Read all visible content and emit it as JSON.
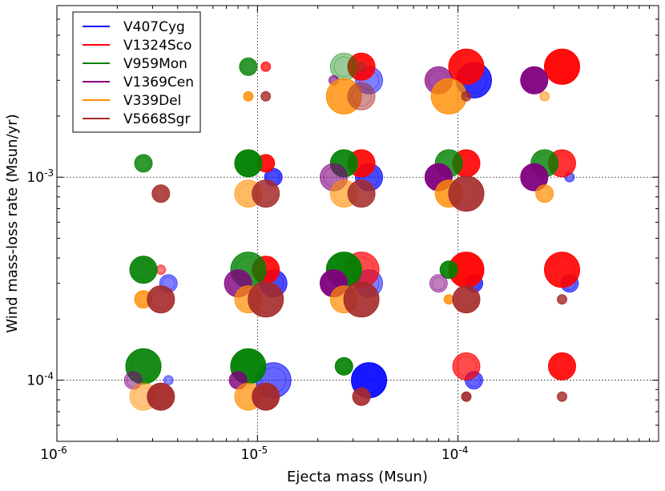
{
  "chart_data": {
    "type": "scatter",
    "title": "",
    "xlabel": "Ejecta mass (Msun)",
    "ylabel": "Wind mass-loss rate (Msun/yr)",
    "xscale": "log",
    "yscale": "log",
    "xlim": [
      1e-06,
      0.001
    ],
    "ylim": [
      5e-05,
      0.007
    ],
    "grid": true,
    "legend_position": "top-left",
    "x_ticks": [
      {
        "value": 1e-06,
        "base": "10",
        "exp": "-6"
      },
      {
        "value": 1e-05,
        "base": "10",
        "exp": "-5"
      },
      {
        "value": 0.0001,
        "base": "10",
        "exp": "-4"
      }
    ],
    "y_ticks": [
      {
        "value": 0.0001,
        "base": "10",
        "exp": "-4"
      },
      {
        "value": 0.001,
        "base": "10",
        "exp": "-3"
      }
    ],
    "series": [
      {
        "name": "V407Cyg",
        "color": "#0000ff",
        "points": [
          {
            "x": 0.00012,
            "y": 0.003,
            "size": "large",
            "alpha": 0.8
          },
          {
            "x": 3.6e-05,
            "y": 0.003,
            "size": "medium",
            "alpha": 0.5
          },
          {
            "x": 3.6e-05,
            "y": 0.001,
            "size": "medium",
            "alpha": 0.7
          },
          {
            "x": 1.2e-05,
            "y": 0.001,
            "size": "small",
            "alpha": 0.7
          },
          {
            "x": 0.00036,
            "y": 0.001,
            "size": "xsmall",
            "alpha": 0.5
          },
          {
            "x": 3.6e-06,
            "y": 0.0003,
            "size": "small",
            "alpha": 0.5
          },
          {
            "x": 1.2e-05,
            "y": 0.0003,
            "size": "medium",
            "alpha": 0.7
          },
          {
            "x": 3.6e-05,
            "y": 0.0003,
            "size": "medium",
            "alpha": 0.5
          },
          {
            "x": 0.00012,
            "y": 0.0003,
            "size": "small",
            "alpha": 0.7
          },
          {
            "x": 0.00036,
            "y": 0.0003,
            "size": "small",
            "alpha": 0.6
          },
          {
            "x": 1.2e-05,
            "y": 0.0001,
            "size": "large",
            "alpha": 0.6
          },
          {
            "x": 3.6e-05,
            "y": 0.0001,
            "size": "large",
            "alpha": 0.9
          },
          {
            "x": 0.00012,
            "y": 0.0001,
            "size": "small",
            "alpha": 0.6
          },
          {
            "x": 3.6e-06,
            "y": 0.0001,
            "size": "xsmall",
            "alpha": 0.4
          }
        ]
      },
      {
        "name": "V1324Sco",
        "color": "#ff0000",
        "points": [
          {
            "x": 1.1e-05,
            "y": 0.0035,
            "size": "xsmall",
            "alpha": 0.7
          },
          {
            "x": 3.3e-05,
            "y": 0.0035,
            "size": "medium",
            "alpha": 0.9
          },
          {
            "x": 0.00011,
            "y": 0.0035,
            "size": "large",
            "alpha": 0.9
          },
          {
            "x": 0.00033,
            "y": 0.0035,
            "size": "large",
            "alpha": 0.95
          },
          {
            "x": 1.1e-05,
            "y": 0.00117,
            "size": "small",
            "alpha": 0.9
          },
          {
            "x": 3.3e-05,
            "y": 0.00117,
            "size": "medium",
            "alpha": 0.9
          },
          {
            "x": 0.00011,
            "y": 0.00117,
            "size": "medium",
            "alpha": 0.9
          },
          {
            "x": 0.00033,
            "y": 0.00117,
            "size": "medium",
            "alpha": 0.8
          },
          {
            "x": 3.3e-06,
            "y": 0.00035,
            "size": "xsmall",
            "alpha": 0.5
          },
          {
            "x": 1.1e-05,
            "y": 0.00035,
            "size": "medium",
            "alpha": 0.9
          },
          {
            "x": 3.3e-05,
            "y": 0.00035,
            "size": "large",
            "alpha": 0.7
          },
          {
            "x": 0.00011,
            "y": 0.00035,
            "size": "large",
            "alpha": 0.95
          },
          {
            "x": 0.00033,
            "y": 0.00035,
            "size": "large",
            "alpha": 0.9
          },
          {
            "x": 0.00011,
            "y": 0.000117,
            "size": "medium",
            "alpha": 0.7
          },
          {
            "x": 0.00033,
            "y": 0.000117,
            "size": "medium",
            "alpha": 0.9
          }
        ]
      },
      {
        "name": "V959Mon",
        "color": "#008000",
        "points": [
          {
            "x": 9e-06,
            "y": 0.0035,
            "size": "small",
            "alpha": 0.8
          },
          {
            "x": 2.7e-05,
            "y": 0.0035,
            "size": "medium",
            "alpha": 0.4
          },
          {
            "x": 2.7e-06,
            "y": 0.00117,
            "size": "small",
            "alpha": 0.8
          },
          {
            "x": 9e-06,
            "y": 0.00117,
            "size": "medium",
            "alpha": 0.95
          },
          {
            "x": 2.7e-05,
            "y": 0.00117,
            "size": "medium",
            "alpha": 0.9
          },
          {
            "x": 9e-05,
            "y": 0.00117,
            "size": "medium",
            "alpha": 0.8
          },
          {
            "x": 0.00027,
            "y": 0.00117,
            "size": "medium",
            "alpha": 0.8
          },
          {
            "x": 2.7e-06,
            "y": 0.00035,
            "size": "medium",
            "alpha": 0.9
          },
          {
            "x": 9e-06,
            "y": 0.00035,
            "size": "large",
            "alpha": 0.8
          },
          {
            "x": 2.7e-05,
            "y": 0.00035,
            "size": "large",
            "alpha": 0.95
          },
          {
            "x": 9e-05,
            "y": 0.00035,
            "size": "small",
            "alpha": 0.9
          },
          {
            "x": 2.7e-06,
            "y": 0.000117,
            "size": "large",
            "alpha": 0.9
          },
          {
            "x": 9e-06,
            "y": 0.000117,
            "size": "large",
            "alpha": 0.95
          },
          {
            "x": 2.7e-05,
            "y": 0.000117,
            "size": "small",
            "alpha": 0.9
          }
        ]
      },
      {
        "name": "V1369Cen",
        "color": "#800080",
        "points": [
          {
            "x": 2.4e-05,
            "y": 0.003,
            "size": "xsmall",
            "alpha": 0.6
          },
          {
            "x": 8e-05,
            "y": 0.003,
            "size": "medium",
            "alpha": 0.7
          },
          {
            "x": 0.00024,
            "y": 0.003,
            "size": "medium",
            "alpha": 0.95
          },
          {
            "x": 2.4e-05,
            "y": 0.001,
            "size": "medium",
            "alpha": 0.6
          },
          {
            "x": 8e-05,
            "y": 0.001,
            "size": "medium",
            "alpha": 0.95
          },
          {
            "x": 0.00024,
            "y": 0.001,
            "size": "medium",
            "alpha": 0.95
          },
          {
            "x": 8e-06,
            "y": 0.0003,
            "size": "medium",
            "alpha": 0.8
          },
          {
            "x": 2.4e-05,
            "y": 0.0003,
            "size": "medium",
            "alpha": 0.95
          },
          {
            "x": 8e-05,
            "y": 0.0003,
            "size": "small",
            "alpha": 0.5
          },
          {
            "x": 2.4e-06,
            "y": 0.0001,
            "size": "small",
            "alpha": 0.5
          },
          {
            "x": 8e-06,
            "y": 0.0001,
            "size": "small",
            "alpha": 0.8
          }
        ]
      },
      {
        "name": "V339Del",
        "color": "#ff8c00",
        "points": [
          {
            "x": 9e-06,
            "y": 0.0025,
            "size": "xsmall",
            "alpha": 0.8
          },
          {
            "x": 2.7e-05,
            "y": 0.0025,
            "size": "large",
            "alpha": 0.8
          },
          {
            "x": 9e-05,
            "y": 0.0025,
            "size": "large",
            "alpha": 0.8
          },
          {
            "x": 0.00027,
            "y": 0.0025,
            "size": "xsmall",
            "alpha": 0.5
          },
          {
            "x": 9e-06,
            "y": 0.00083,
            "size": "medium",
            "alpha": 0.6
          },
          {
            "x": 2.7e-05,
            "y": 0.00083,
            "size": "medium",
            "alpha": 0.6
          },
          {
            "x": 9e-05,
            "y": 0.00083,
            "size": "medium",
            "alpha": 0.8
          },
          {
            "x": 0.00027,
            "y": 0.00083,
            "size": "small",
            "alpha": 0.7
          },
          {
            "x": 2.7e-06,
            "y": 0.00025,
            "size": "small",
            "alpha": 0.8
          },
          {
            "x": 9e-06,
            "y": 0.00025,
            "size": "medium",
            "alpha": 0.7
          },
          {
            "x": 2.7e-05,
            "y": 0.00025,
            "size": "medium",
            "alpha": 0.7
          },
          {
            "x": 9e-05,
            "y": 0.00025,
            "size": "xsmall",
            "alpha": 0.8
          },
          {
            "x": 2.7e-06,
            "y": 8.3e-05,
            "size": "medium",
            "alpha": 0.5
          },
          {
            "x": 9e-06,
            "y": 8.3e-05,
            "size": "medium",
            "alpha": 0.7
          }
        ]
      },
      {
        "name": "V5668Sgr",
        "color": "#a52a2a",
        "points": [
          {
            "x": 1.1e-05,
            "y": 0.0025,
            "size": "xsmall",
            "alpha": 0.8
          },
          {
            "x": 3.3e-05,
            "y": 0.0025,
            "size": "medium",
            "alpha": 0.5
          },
          {
            "x": 3.3e-05,
            "y": 0.0035,
            "size": "xsmall",
            "alpha": 0.5
          },
          {
            "x": 0.00011,
            "y": 0.0025,
            "size": "xsmall",
            "alpha": 0.7
          },
          {
            "x": 3.3e-06,
            "y": 0.00083,
            "size": "small",
            "alpha": 0.85
          },
          {
            "x": 1.1e-05,
            "y": 0.00083,
            "size": "medium",
            "alpha": 0.85
          },
          {
            "x": 3.3e-05,
            "y": 0.00083,
            "size": "medium",
            "alpha": 0.85
          },
          {
            "x": 0.00011,
            "y": 0.00083,
            "size": "large",
            "alpha": 0.9
          },
          {
            "x": 3.3e-06,
            "y": 0.00025,
            "size": "medium",
            "alpha": 0.9
          },
          {
            "x": 1.1e-05,
            "y": 0.00025,
            "size": "large",
            "alpha": 0.9
          },
          {
            "x": 3.3e-05,
            "y": 0.00025,
            "size": "large",
            "alpha": 0.9
          },
          {
            "x": 0.00011,
            "y": 0.00025,
            "size": "medium",
            "alpha": 0.9
          },
          {
            "x": 0.00033,
            "y": 0.00025,
            "size": "xsmall",
            "alpha": 0.8
          },
          {
            "x": 3.3e-06,
            "y": 8.3e-05,
            "size": "medium",
            "alpha": 0.95
          },
          {
            "x": 1.1e-05,
            "y": 8.3e-05,
            "size": "medium",
            "alpha": 0.95
          },
          {
            "x": 3.3e-05,
            "y": 8.3e-05,
            "size": "small",
            "alpha": 0.9
          },
          {
            "x": 0.00011,
            "y": 8.3e-05,
            "size": "xsmall",
            "alpha": 0.9
          },
          {
            "x": 0.00033,
            "y": 8.3e-05,
            "size": "xsmall",
            "alpha": 0.8
          }
        ]
      }
    ]
  }
}
